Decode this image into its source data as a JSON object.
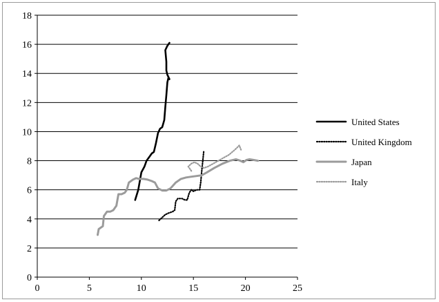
{
  "chart_data": {
    "type": "line",
    "xlim": [
      0,
      25
    ],
    "ylim": [
      0,
      18
    ],
    "x_ticks": [
      "0",
      "5",
      "10",
      "15",
      "20",
      "25"
    ],
    "y_ticks": [
      "0",
      "2",
      "4",
      "6",
      "8",
      "10",
      "12",
      "14",
      "16",
      "18"
    ],
    "grid": "horizontal",
    "legend_position": "right",
    "series": [
      {
        "name": "United States",
        "color": "#000000",
        "style": "solid",
        "points": [
          [
            9.4,
            5.3
          ],
          [
            9.7,
            6.0
          ],
          [
            9.9,
            6.8
          ],
          [
            10.0,
            7.2
          ],
          [
            10.3,
            7.6
          ],
          [
            10.5,
            8.0
          ],
          [
            10.8,
            8.3
          ],
          [
            11.0,
            8.5
          ],
          [
            11.2,
            8.6
          ],
          [
            11.4,
            9.2
          ],
          [
            11.6,
            9.9
          ],
          [
            11.8,
            10.2
          ],
          [
            12.0,
            10.3
          ],
          [
            12.2,
            10.8
          ],
          [
            12.3,
            11.7
          ],
          [
            12.4,
            12.5
          ],
          [
            12.5,
            13.4
          ],
          [
            12.6,
            13.7
          ],
          [
            12.7,
            13.6
          ],
          [
            12.5,
            13.9
          ],
          [
            12.4,
            14.2
          ],
          [
            12.4,
            14.8
          ],
          [
            12.3,
            15.6
          ],
          [
            12.5,
            15.9
          ],
          [
            12.7,
            16.1
          ]
        ]
      },
      {
        "name": "United Kingdom",
        "color": "#000000",
        "style": "dotted",
        "points": [
          [
            11.7,
            3.9
          ],
          [
            12.0,
            4.1
          ],
          [
            12.3,
            4.3
          ],
          [
            12.6,
            4.4
          ],
          [
            13.0,
            4.5
          ],
          [
            13.2,
            4.6
          ],
          [
            13.3,
            5.2
          ],
          [
            13.5,
            5.4
          ],
          [
            13.9,
            5.4
          ],
          [
            14.2,
            5.3
          ],
          [
            14.4,
            5.3
          ],
          [
            14.6,
            5.8
          ],
          [
            14.8,
            6.0
          ],
          [
            15.0,
            5.9
          ],
          [
            15.3,
            6.0
          ],
          [
            15.6,
            6.0
          ],
          [
            15.7,
            6.5
          ],
          [
            15.8,
            7.3
          ],
          [
            15.9,
            8.0
          ],
          [
            16.0,
            8.7
          ]
        ]
      },
      {
        "name": "Japan",
        "color": "#9b9b9b",
        "style": "solid",
        "points": [
          [
            5.8,
            2.9
          ],
          [
            5.9,
            3.3
          ],
          [
            6.1,
            3.4
          ],
          [
            6.3,
            3.5
          ],
          [
            6.4,
            4.2
          ],
          [
            6.7,
            4.5
          ],
          [
            7.0,
            4.5
          ],
          [
            7.3,
            4.6
          ],
          [
            7.6,
            4.9
          ],
          [
            7.8,
            5.7
          ],
          [
            8.1,
            5.7
          ],
          [
            8.4,
            5.8
          ],
          [
            8.6,
            6.0
          ],
          [
            8.8,
            6.5
          ],
          [
            9.2,
            6.7
          ],
          [
            9.5,
            6.8
          ],
          [
            9.8,
            6.75
          ],
          [
            10.2,
            6.75
          ],
          [
            10.6,
            6.7
          ],
          [
            11.0,
            6.6
          ],
          [
            11.3,
            6.5
          ],
          [
            11.6,
            6.1
          ],
          [
            12.0,
            5.95
          ],
          [
            12.4,
            5.95
          ],
          [
            12.8,
            6.1
          ],
          [
            13.3,
            6.5
          ],
          [
            13.8,
            6.75
          ],
          [
            14.3,
            6.85
          ],
          [
            14.8,
            6.9
          ],
          [
            15.3,
            6.95
          ],
          [
            15.8,
            7.0
          ],
          [
            16.3,
            7.2
          ],
          [
            17.0,
            7.5
          ],
          [
            17.8,
            7.8
          ],
          [
            18.5,
            8.0
          ],
          [
            19.1,
            8.1
          ],
          [
            19.5,
            8.0
          ],
          [
            19.8,
            7.9
          ],
          [
            20.1,
            8.05
          ],
          [
            20.4,
            8.1
          ],
          [
            20.8,
            8.05
          ],
          [
            21.2,
            8.0
          ]
        ]
      },
      {
        "name": "Italy",
        "color": "#9b9b9b",
        "style": "dotted",
        "points": [
          [
            14.8,
            7.3
          ],
          [
            14.5,
            7.6
          ],
          [
            14.8,
            7.8
          ],
          [
            15.1,
            7.9
          ],
          [
            15.4,
            7.8
          ],
          [
            15.7,
            7.6
          ],
          [
            16.0,
            7.5
          ],
          [
            16.4,
            7.6
          ],
          [
            16.9,
            7.8
          ],
          [
            17.4,
            8.0
          ],
          [
            17.9,
            8.2
          ],
          [
            18.4,
            8.4
          ],
          [
            18.9,
            8.7
          ],
          [
            19.2,
            8.9
          ],
          [
            19.4,
            9.05
          ],
          [
            19.6,
            8.7
          ]
        ]
      }
    ]
  }
}
